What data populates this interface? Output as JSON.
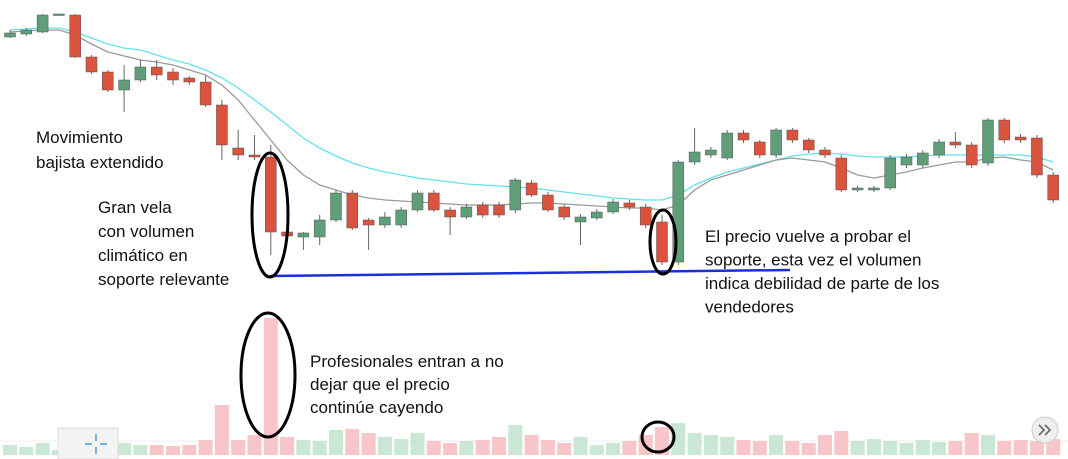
{
  "chart_data": {
    "type": "candlestick",
    "open": [
      263,
      266,
      268,
      286,
      285,
      243,
      228,
      210,
      220,
      233,
      228,
      222,
      218,
      195,
      152,
      145,
      143,
      68,
      63,
      63,
      80,
      107,
      80,
      75,
      75,
      90,
      107,
      90,
      83,
      95,
      95,
      90,
      117,
      105,
      93,
      78,
      82,
      88,
      97,
      93,
      78,
      38,
      138,
      145,
      142,
      167,
      158,
      145,
      170,
      160,
      150,
      142,
      110,
      110,
      112,
      135,
      135,
      145,
      158,
      155,
      137,
      180,
      163,
      162,
      125
    ],
    "high": [
      270,
      272,
      286,
      286,
      286,
      245,
      230,
      235,
      240,
      240,
      232,
      224,
      225,
      200,
      170,
      165,
      155,
      70,
      68,
      85,
      110,
      110,
      82,
      88,
      93,
      110,
      110,
      93,
      96,
      98,
      98,
      122,
      120,
      108,
      96,
      86,
      91,
      101,
      100,
      96,
      85,
      140,
      172,
      153,
      170,
      170,
      160,
      172,
      172,
      162,
      153,
      145,
      114,
      114,
      145,
      146,
      150,
      161,
      168,
      158,
      182,
      182,
      166,
      165,
      128
    ],
    "low": [
      262,
      264,
      267,
      286,
      242,
      226,
      208,
      188,
      218,
      220,
      215,
      215,
      193,
      140,
      140,
      140,
      45,
      60,
      50,
      55,
      78,
      70,
      50,
      72,
      72,
      88,
      88,
      65,
      81,
      82,
      82,
      87,
      103,
      88,
      80,
      55,
      80,
      86,
      90,
      72,
      35,
      35,
      135,
      142,
      140,
      157,
      142,
      142,
      157,
      147,
      142,
      108,
      108,
      108,
      110,
      132,
      132,
      142,
      152,
      132,
      134,
      157,
      157,
      122,
      97
    ],
    "close": [
      267,
      270,
      285,
      286,
      243,
      228,
      210,
      220,
      233,
      225,
      220,
      218,
      195,
      155,
      145,
      143,
      68,
      64,
      67,
      80,
      107,
      72,
      75,
      83,
      90,
      107,
      90,
      83,
      93,
      85,
      85,
      120,
      105,
      90,
      83,
      83,
      88,
      98,
      93,
      75,
      38,
      138,
      148,
      150,
      167,
      160,
      145,
      170,
      160,
      150,
      145,
      110,
      112,
      112,
      142,
      143,
      147,
      158,
      155,
      135,
      180,
      160,
      160,
      125,
      100
    ],
    "volume": [
      10,
      8,
      12,
      5,
      18,
      15,
      14,
      12,
      10,
      10,
      9,
      10,
      15,
      50,
      15,
      20,
      137,
      18,
      15,
      14,
      25,
      26,
      22,
      18,
      16,
      22,
      14,
      12,
      14,
      15,
      18,
      30,
      20,
      15,
      12,
      18,
      10,
      12,
      14,
      20,
      28,
      32,
      22,
      20,
      18,
      15,
      14,
      20,
      14,
      12,
      20,
      24,
      14,
      16,
      14,
      12,
      15,
      13,
      14,
      22,
      20,
      14,
      15,
      14,
      16
    ],
    "up_color": "#5f9e78",
    "down_color": "#d9533f",
    "volume_up_color": "#c9e7d4",
    "volume_down_color": "#f8c5c8",
    "overlays": [
      {
        "color": "#5fe3ea",
        "values": [
          270,
          271,
          272,
          272,
          268,
          262,
          256,
          252,
          250,
          245,
          240,
          236,
          230,
          222,
          212,
          200,
          188,
          175,
          162,
          152,
          144,
          137,
          132,
          128,
          125,
          122,
          120,
          118,
          116,
          115,
          114,
          113,
          112,
          110,
          108,
          106,
          104,
          102,
          101,
          100,
          100,
          105,
          115,
          122,
          128,
          132,
          136,
          140,
          144,
          146,
          147,
          146,
          144,
          143,
          143,
          143,
          144,
          145,
          145,
          145,
          145,
          145,
          145,
          143,
          138
        ]
      },
      {
        "color": "#9a9a9a",
        "values": [
          268,
          269,
          270,
          270,
          265,
          256,
          248,
          244,
          240,
          238,
          235,
          230,
          225,
          215,
          200,
          180,
          160,
          140,
          125,
          115,
          110,
          105,
          102,
          100,
          99,
          98,
          97,
          96,
          95,
          95,
          95,
          96,
          97,
          97,
          96,
          95,
          94,
          93,
          92,
          92,
          90,
          95,
          110,
          120,
          125,
          130,
          135,
          140,
          142,
          140,
          138,
          132,
          125,
          122,
          125,
          128,
          132,
          135,
          138,
          138,
          142,
          143,
          140,
          138,
          130
        ]
      }
    ],
    "annotations": [
      [
        "Movimiento",
        "bajista extendido"
      ],
      [
        "Gran vela",
        "con volumen",
        "climático en",
        "soporte relevante"
      ],
      [
        "El precio vuelve a probar el",
        "soporte, esta vez el volumen",
        "indica debilidad de parte de los",
        "vendedores"
      ],
      [
        "Profesionales entran a no",
        "dejar que el precio",
        "continúe cayendo"
      ]
    ]
  }
}
